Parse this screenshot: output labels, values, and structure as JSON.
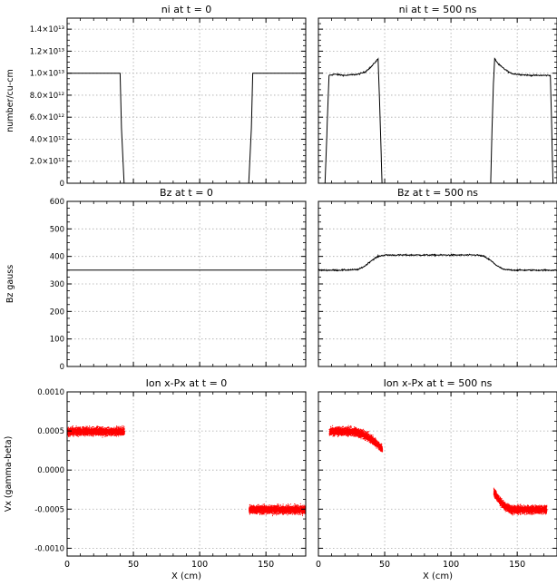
{
  "figure": {
    "xlabel": "X (cm)"
  },
  "chart_data": [
    {
      "type": "line",
      "title": "ni at t = 0",
      "xlabel": "",
      "ylabel": "number/cu-cm",
      "xlim": [
        0,
        180
      ],
      "ylim": [
        0,
        15000000000000.0
      ],
      "yticks": [
        0,
        2000000000000.0,
        4000000000000.0,
        6000000000000.0,
        8000000000000.0,
        10000000000000.0,
        12000000000000.0,
        14000000000000.0
      ],
      "ytick_labels": [
        "0",
        "2.0×10¹²",
        "4.0×10¹²",
        "6.0×10¹²",
        "8.0×10¹²",
        "1.0×10¹³",
        "1.2×10¹³",
        "1.4×10¹³"
      ],
      "xticks": [
        0,
        50,
        100,
        150
      ],
      "xtick_labels": [],
      "grid": true,
      "series": [
        {
          "x": [
            0,
            40,
            41,
            43,
            180,
            140,
            139,
            137
          ],
          "y": [
            10000000000000.0,
            10000000000000.0,
            5000000000000.0,
            0,
            10000000000000.0,
            10000000000000.0,
            5000000000000.0,
            0
          ]
        }
      ],
      "color": "#000000"
    },
    {
      "type": "line",
      "title": "ni at t = 500 ns",
      "xlabel": "",
      "ylabel": "",
      "xlim": [
        0,
        180
      ],
      "ylim": [
        0,
        15000000000000.0
      ],
      "yticks": [
        0,
        2000000000000.0,
        4000000000000.0,
        6000000000000.0,
        8000000000000.0,
        10000000000000.0,
        12000000000000.0,
        14000000000000.0
      ],
      "ytick_labels": [],
      "xticks": [
        0,
        50,
        100,
        150
      ],
      "xtick_labels": [],
      "grid": true,
      "series": [
        {
          "x": [
            5,
            8,
            12,
            20,
            30,
            35,
            40,
            45,
            46,
            47,
            48
          ],
          "y": [
            0,
            9800000000000.0,
            9900000000000.0,
            9800000000000.0,
            9900000000000.0,
            10100000000000.0,
            10600000000000.0,
            11300000000000.0,
            8000000000000.0,
            4000000000000.0,
            0
          ]
        },
        {
          "x": [
            130,
            131,
            132,
            133,
            136,
            140,
            145,
            150,
            160,
            170,
            175,
            176,
            177
          ],
          "y": [
            0,
            5000000000000.0,
            9000000000000.0,
            11300000000000.0,
            10800000000000.0,
            10400000000000.0,
            10000000000000.0,
            9900000000000.0,
            9800000000000.0,
            9800000000000.0,
            9800000000000.0,
            5000000000000.0,
            0
          ]
        }
      ],
      "color": "#000000"
    },
    {
      "type": "line",
      "title": "Bz at t = 0",
      "xlabel": "",
      "ylabel": "Bz gauss",
      "xlim": [
        0,
        180
      ],
      "ylim": [
        0,
        600
      ],
      "yticks": [
        0,
        100,
        200,
        300,
        400,
        500,
        600
      ],
      "ytick_labels": [
        "0",
        "100",
        "200",
        "300",
        "400",
        "500",
        "600"
      ],
      "xticks": [
        0,
        50,
        100,
        150
      ],
      "xtick_labels": [],
      "grid": true,
      "series": [
        {
          "x": [
            0,
            180
          ],
          "y": [
            350,
            350
          ]
        }
      ],
      "color": "#000000"
    },
    {
      "type": "line",
      "title": "Bz at t = 500 ns",
      "xlabel": "",
      "ylabel": "",
      "xlim": [
        0,
        180
      ],
      "ylim": [
        0,
        600
      ],
      "yticks": [
        0,
        100,
        200,
        300,
        400,
        500,
        600
      ],
      "ytick_labels": [],
      "xticks": [
        0,
        50,
        100,
        150
      ],
      "xtick_labels": [],
      "grid": true,
      "series": [
        {
          "x": [
            0,
            15,
            30,
            35,
            40,
            45,
            50,
            80,
            120,
            125,
            130,
            135,
            140,
            150,
            180
          ],
          "y": [
            350,
            350,
            352,
            365,
            385,
            400,
            405,
            405,
            405,
            400,
            385,
            365,
            352,
            350,
            350
          ]
        }
      ],
      "color": "#000000"
    },
    {
      "type": "scatter",
      "title": "Ion x-Px at t = 0",
      "xlabel": "X (cm)",
      "ylabel": "Vx (gamma-beta)",
      "xlim": [
        0,
        180
      ],
      "ylim": [
        -0.0011,
        0.001
      ],
      "yticks": [
        -0.001,
        -0.0005,
        0,
        0.0005,
        0.001
      ],
      "ytick_labels": [
        "-0.0010",
        "-0.0005",
        "0.0000",
        "0.0005",
        "0.0010"
      ],
      "xticks": [
        0,
        50,
        100,
        150
      ],
      "xtick_labels": [
        "0",
        "50",
        "100",
        "150"
      ],
      "grid": true,
      "clusters": [
        {
          "x_range": [
            0,
            43
          ],
          "y_center": 0.0005,
          "y_spread": 9e-05
        },
        {
          "x_range": [
            137,
            180
          ],
          "y_center": -0.0005,
          "y_spread": 9e-05
        }
      ],
      "color": "#ff0000"
    },
    {
      "type": "scatter",
      "title": "Ion x-Px at t = 500 ns",
      "xlabel": "X (cm)",
      "ylabel": "",
      "xlim": [
        0,
        180
      ],
      "ylim": [
        -0.0011,
        0.001
      ],
      "yticks": [
        -0.001,
        -0.0005,
        0,
        0.0005,
        0.001
      ],
      "ytick_labels": [],
      "xticks": [
        0,
        50,
        100,
        150
      ],
      "xtick_labels": [
        "0",
        "50",
        "100",
        "150"
      ],
      "grid": true,
      "clusters": [
        {
          "x_range": [
            8,
            48
          ],
          "y_center": 0.0005,
          "y_spread": 9e-05,
          "bend": "down-right",
          "bend_amount": 0.00023
        },
        {
          "x_range": [
            132,
            172
          ],
          "y_center": -0.0005,
          "y_spread": 9e-05,
          "bend": "up-left",
          "bend_amount": 0.00023
        }
      ],
      "color": "#ff0000"
    }
  ]
}
